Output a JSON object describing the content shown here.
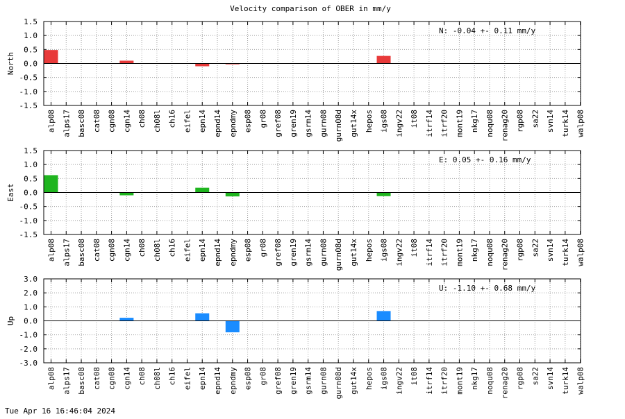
{
  "title": "Velocity comparison of OBER in mm/y",
  "timestamp": "Tue Apr 16 16:46:04 2024",
  "colors": {
    "north": "#e83a3a",
    "east": "#1fb51f",
    "up": "#1a8cff",
    "grid": "#a0a0a0"
  },
  "chart_data": [
    {
      "type": "bar",
      "ylabel": "North",
      "ylim": [
        -1.5,
        1.5
      ],
      "yticks": [
        "1.5",
        "1.0",
        "0.5",
        "0.0",
        "-0.5",
        "-1.0",
        "-1.5"
      ],
      "grid": true,
      "annotation": "N:  -0.04 +-  0.11 mm/y",
      "color_key": "north",
      "categories": [
        "alp08",
        "alps17",
        "basc08",
        "cat08",
        "cgn08",
        "cgn14",
        "ch08",
        "ch08l",
        "ch16",
        "eifel",
        "epn14",
        "epnd14",
        "epndmy",
        "esp08",
        "gr08",
        "gref08",
        "gren19",
        "gsrm14",
        "gurn08",
        "gurn08d",
        "gut14x",
        "hepos",
        "igs08",
        "ingv22",
        "it08",
        "itrf14",
        "itrf20",
        "mont19",
        "nkg17",
        "noqu08",
        "renag20",
        "rgp08",
        "sa22",
        "svn14",
        "turk14",
        "walp08"
      ],
      "values": [
        0.48,
        0,
        0,
        0,
        0,
        0.1,
        0,
        0,
        0,
        0,
        -0.1,
        0,
        -0.03,
        0,
        0,
        0,
        0,
        0,
        0,
        0,
        0,
        0,
        0.27,
        0,
        0,
        0,
        0,
        0,
        0,
        0,
        0,
        0,
        0,
        0,
        0,
        0
      ]
    },
    {
      "type": "bar",
      "ylabel": "East",
      "ylim": [
        -1.5,
        1.5
      ],
      "yticks": [
        "1.5",
        "1.0",
        "0.5",
        "0.0",
        "-0.5",
        "-1.0",
        "-1.5"
      ],
      "grid": true,
      "annotation": "E:   0.05 +-  0.16 mm/y",
      "color_key": "east",
      "categories": [
        "alp08",
        "alps17",
        "basc08",
        "cat08",
        "cgn08",
        "cgn14",
        "ch08",
        "ch08l",
        "ch16",
        "eifel",
        "epn14",
        "epnd14",
        "epndmy",
        "esp08",
        "gr08",
        "gref08",
        "gren19",
        "gsrm14",
        "gurn08",
        "gurn08d",
        "gut14x",
        "hepos",
        "igs08",
        "ingv22",
        "it08",
        "itrf14",
        "itrf20",
        "mont19",
        "nkg17",
        "noqu08",
        "renag20",
        "rgp08",
        "sa22",
        "svn14",
        "turk14",
        "walp08"
      ],
      "values": [
        0.62,
        0,
        0,
        0,
        0,
        -0.1,
        0,
        0,
        0,
        0,
        0.17,
        0,
        -0.14,
        0,
        0,
        0,
        0,
        0,
        0,
        0,
        0,
        0,
        -0.13,
        0,
        0,
        0,
        0,
        0,
        0,
        0,
        0,
        0,
        0,
        0,
        0,
        0
      ]
    },
    {
      "type": "bar",
      "ylabel": "Up",
      "ylim": [
        -3.0,
        3.0
      ],
      "yticks": [
        "3.0",
        "2.0",
        "1.0",
        "0.0",
        "-1.0",
        "-2.0",
        "-3.0"
      ],
      "grid": true,
      "annotation": "U:  -1.10 +-  0.68 mm/y",
      "color_key": "up",
      "categories": [
        "alp08",
        "alps17",
        "basc08",
        "cat08",
        "cgn08",
        "cgn14",
        "ch08",
        "ch08l",
        "ch16",
        "eifel",
        "epn14",
        "epnd14",
        "epndmy",
        "esp08",
        "gr08",
        "gref08",
        "gren19",
        "gsrm14",
        "gurn08",
        "gurn08d",
        "gut14x",
        "hepos",
        "igs08",
        "ingv22",
        "it08",
        "itrf14",
        "itrf20",
        "mont19",
        "nkg17",
        "noqu08",
        "renag20",
        "rgp08",
        "sa22",
        "svn14",
        "turk14",
        "walp08"
      ],
      "values": [
        0,
        0,
        0,
        0,
        0,
        0.22,
        0,
        0,
        0,
        0,
        0.54,
        0,
        -0.82,
        0,
        0,
        0,
        0,
        0,
        0,
        0,
        0,
        0,
        0.7,
        0,
        0,
        0,
        0,
        0,
        0,
        0,
        0,
        0,
        0,
        0,
        0,
        0
      ]
    }
  ]
}
